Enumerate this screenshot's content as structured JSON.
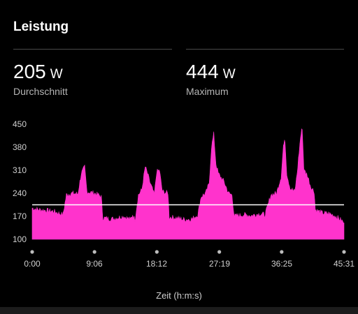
{
  "card": {
    "title": "Leistung"
  },
  "stats": [
    {
      "value": "205",
      "unit": "W",
      "label": "Durchschnitt"
    },
    {
      "value": "444",
      "unit": "W",
      "label": "Maximum"
    }
  ],
  "colors": {
    "series": "#ff33cc",
    "average_line": "#ffffff",
    "background": "#000000"
  },
  "chart_data": {
    "type": "area",
    "title": "",
    "xlabel": "Zeit (h:m:s)",
    "ylabel": "",
    "x_unit": "seconds",
    "xlim": [
      0,
      2731
    ],
    "ylim": [
      100,
      450
    ],
    "yticks": [
      "100",
      "170",
      "240",
      "310",
      "380",
      "450"
    ],
    "xticks": [
      {
        "t": 0,
        "label": "0:00"
      },
      {
        "t": 546,
        "label": "9:06"
      },
      {
        "t": 1092,
        "label": "18:12"
      },
      {
        "t": 1639,
        "label": "27:19"
      },
      {
        "t": 2185,
        "label": "36:25"
      },
      {
        "t": 2731,
        "label": "45:31"
      }
    ],
    "average": 205,
    "series": [
      {
        "values": [
          [
            0,
            195
          ],
          [
            60,
            190
          ],
          [
            120,
            188
          ],
          [
            190,
            185
          ],
          [
            270,
            175
          ],
          [
            300,
            235
          ],
          [
            340,
            240
          ],
          [
            400,
            238
          ],
          [
            430,
            300
          ],
          [
            460,
            320
          ],
          [
            480,
            245
          ],
          [
            550,
            240
          ],
          [
            605,
            230
          ],
          [
            620,
            165
          ],
          [
            700,
            162
          ],
          [
            800,
            170
          ],
          [
            860,
            160
          ],
          [
            880,
            175
          ],
          [
            900,
            160
          ],
          [
            930,
            235
          ],
          [
            960,
            250
          ],
          [
            990,
            320
          ],
          [
            1010,
            300
          ],
          [
            1030,
            275
          ],
          [
            1070,
            235
          ],
          [
            1090,
            305
          ],
          [
            1115,
            310
          ],
          [
            1140,
            245
          ],
          [
            1190,
            240
          ],
          [
            1200,
            168
          ],
          [
            1260,
            165
          ],
          [
            1340,
            160
          ],
          [
            1400,
            162
          ],
          [
            1450,
            175
          ],
          [
            1480,
            230
          ],
          [
            1520,
            240
          ],
          [
            1550,
            270
          ],
          [
            1570,
            380
          ],
          [
            1590,
            420
          ],
          [
            1610,
            330
          ],
          [
            1630,
            300
          ],
          [
            1680,
            275
          ],
          [
            1720,
            240
          ],
          [
            1750,
            235
          ],
          [
            1770,
            170
          ],
          [
            1850,
            175
          ],
          [
            1920,
            172
          ],
          [
            1990,
            178
          ],
          [
            2040,
            175
          ],
          [
            2070,
            210
          ],
          [
            2090,
            235
          ],
          [
            2140,
            240
          ],
          [
            2180,
            290
          ],
          [
            2200,
            385
          ],
          [
            2215,
            400
          ],
          [
            2230,
            300
          ],
          [
            2260,
            255
          ],
          [
            2300,
            245
          ],
          [
            2320,
            300
          ],
          [
            2350,
            410
          ],
          [
            2365,
            440
          ],
          [
            2380,
            310
          ],
          [
            2410,
            295
          ],
          [
            2440,
            260
          ],
          [
            2470,
            245
          ],
          [
            2480,
            190
          ],
          [
            2540,
            180
          ],
          [
            2600,
            178
          ],
          [
            2660,
            170
          ],
          [
            2700,
            160
          ],
          [
            2731,
            150
          ]
        ]
      }
    ]
  }
}
